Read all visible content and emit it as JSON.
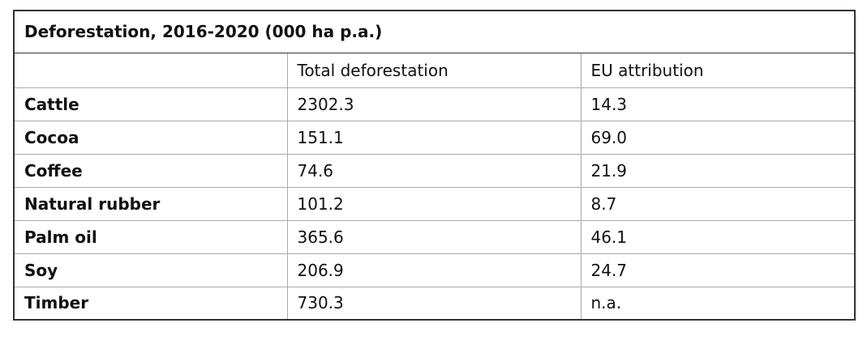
{
  "table": {
    "title": "Deforestation, 2016-2020 (000 ha p.a.)",
    "columns": [
      "Total deforestation",
      "EU attribution"
    ],
    "rows": [
      [
        "Cattle",
        "2302.3",
        "14.3"
      ],
      [
        "Cocoa",
        "151.1",
        "69.0"
      ],
      [
        "Coffee",
        "74.6",
        "21.9"
      ],
      [
        "Natural rubber",
        "101.2",
        "8.7"
      ],
      [
        "Palm oil",
        "365.6",
        "46.1"
      ],
      [
        "Soy",
        "206.9",
        "24.7"
      ],
      [
        "Timber",
        "730.3",
        "n.a."
      ]
    ]
  }
}
